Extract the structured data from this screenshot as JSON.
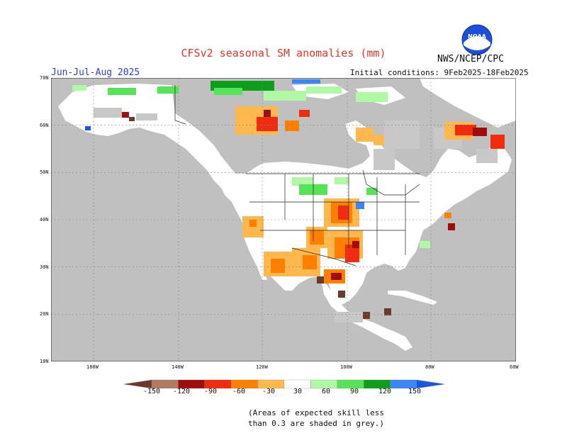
{
  "title": "CFSv2 seasonal SM anomalies (mm)",
  "org": "NWS/NCEP/CPC",
  "period": "Jun-Jul-Aug 2025",
  "init_conditions": "Initial conditions: 9Feb2025-18Feb2025",
  "lat_labels": [
    "70N",
    "60N",
    "50N",
    "40N",
    "30N",
    "20N",
    "10N"
  ],
  "lon_labels": [
    "180W",
    "140W",
    "120W",
    "100W",
    "80W",
    "60W"
  ],
  "colorbar": {
    "ticks": [
      "-150",
      "-120",
      "-90",
      "-60",
      "-30",
      "30",
      "60",
      "90",
      "120",
      "150"
    ],
    "colors": [
      "#6b3a2a",
      "#b07a63",
      "#a00d0d",
      "#ef2c10",
      "#ff7f00",
      "#ffb84d",
      "#ffffff",
      "#b2f7a8",
      "#57e357",
      "#0f9e1c",
      "#3b86f5",
      "#1c56e0"
    ]
  },
  "note_line1": "(Areas of expected skill less",
  "note_line2": "than 0.3 are shaded in grey.)",
  "colors": {
    "land": "#ffffff",
    "ocean": "#c0c0c0",
    "no_skill": "#c8c8c8",
    "title": "#e8342c",
    "period": "#2a3fd0"
  }
}
